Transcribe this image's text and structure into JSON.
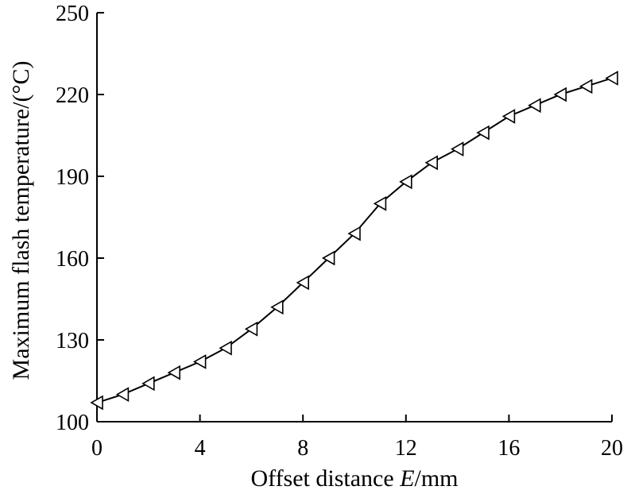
{
  "chart_data": {
    "type": "line",
    "title": "",
    "xlabel": "Offset distance E/mm",
    "ylabel": "Maximum flash temperature/(°C)",
    "xlabel_parts": {
      "prefix": "Offset distance ",
      "italic": "E",
      "suffix": "/mm"
    },
    "xlim": [
      0,
      20
    ],
    "ylim": [
      100,
      250
    ],
    "xticks": [
      0,
      4,
      8,
      12,
      16,
      20
    ],
    "yticks": [
      100,
      130,
      160,
      190,
      220,
      250
    ],
    "grid": false,
    "marker": "left-triangle",
    "series": [
      {
        "x": [
          0,
          1,
          2,
          3,
          4,
          5,
          6,
          7,
          8,
          9,
          10,
          11,
          12,
          13,
          14,
          15,
          16,
          17,
          18,
          19,
          20
        ],
        "values": [
          107,
          110,
          114,
          118,
          122,
          127,
          134,
          142,
          151,
          160,
          169,
          180,
          188,
          195,
          200,
          206,
          212,
          216,
          220,
          223,
          226
        ]
      }
    ]
  }
}
